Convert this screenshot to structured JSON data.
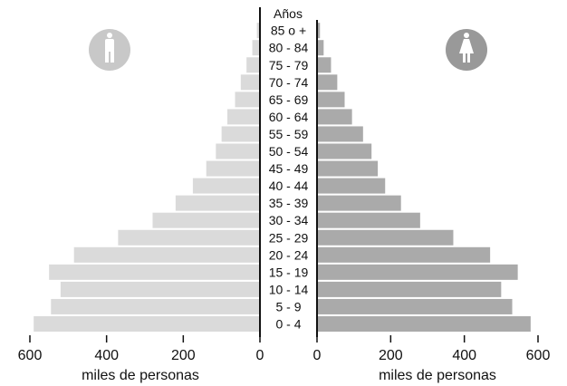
{
  "chart_data": {
    "type": "bar",
    "subtype": "population-pyramid",
    "age_header": "Años",
    "categories": [
      "0 - 4",
      "5 - 9",
      "10 - 14",
      "15 - 19",
      "20 - 24",
      "25 - 29",
      "30 - 34",
      "35 - 39",
      "40 - 44",
      "45 - 49",
      "50 - 54",
      "55 - 59",
      "60 - 64",
      "65 - 69",
      "70 - 74",
      "75 - 79",
      "80 - 84",
      "85 o +"
    ],
    "series": [
      {
        "values": [
          590,
          545,
          520,
          550,
          485,
          370,
          280,
          220,
          175,
          140,
          115,
          100,
          85,
          65,
          50,
          35,
          20,
          8
        ],
        "color": "#dadada"
      },
      {
        "values": [
          580,
          530,
          500,
          545,
          470,
          370,
          280,
          228,
          185,
          165,
          148,
          125,
          95,
          75,
          55,
          38,
          18,
          8
        ],
        "color": "#aaaaaa"
      }
    ],
    "xlim": [
      0,
      600
    ],
    "x_ticks": [
      "600",
      "400",
      "200",
      "0"
    ],
    "x_ticks_right": [
      "0",
      "200",
      "400",
      "600"
    ],
    "xlabel_left": "miles de personas",
    "xlabel_right": "miles de personas",
    "icons": {
      "left": "male-person-icon",
      "right": "female-person-icon",
      "color": "#c8c8c8",
      "color_right": "#999999"
    }
  }
}
